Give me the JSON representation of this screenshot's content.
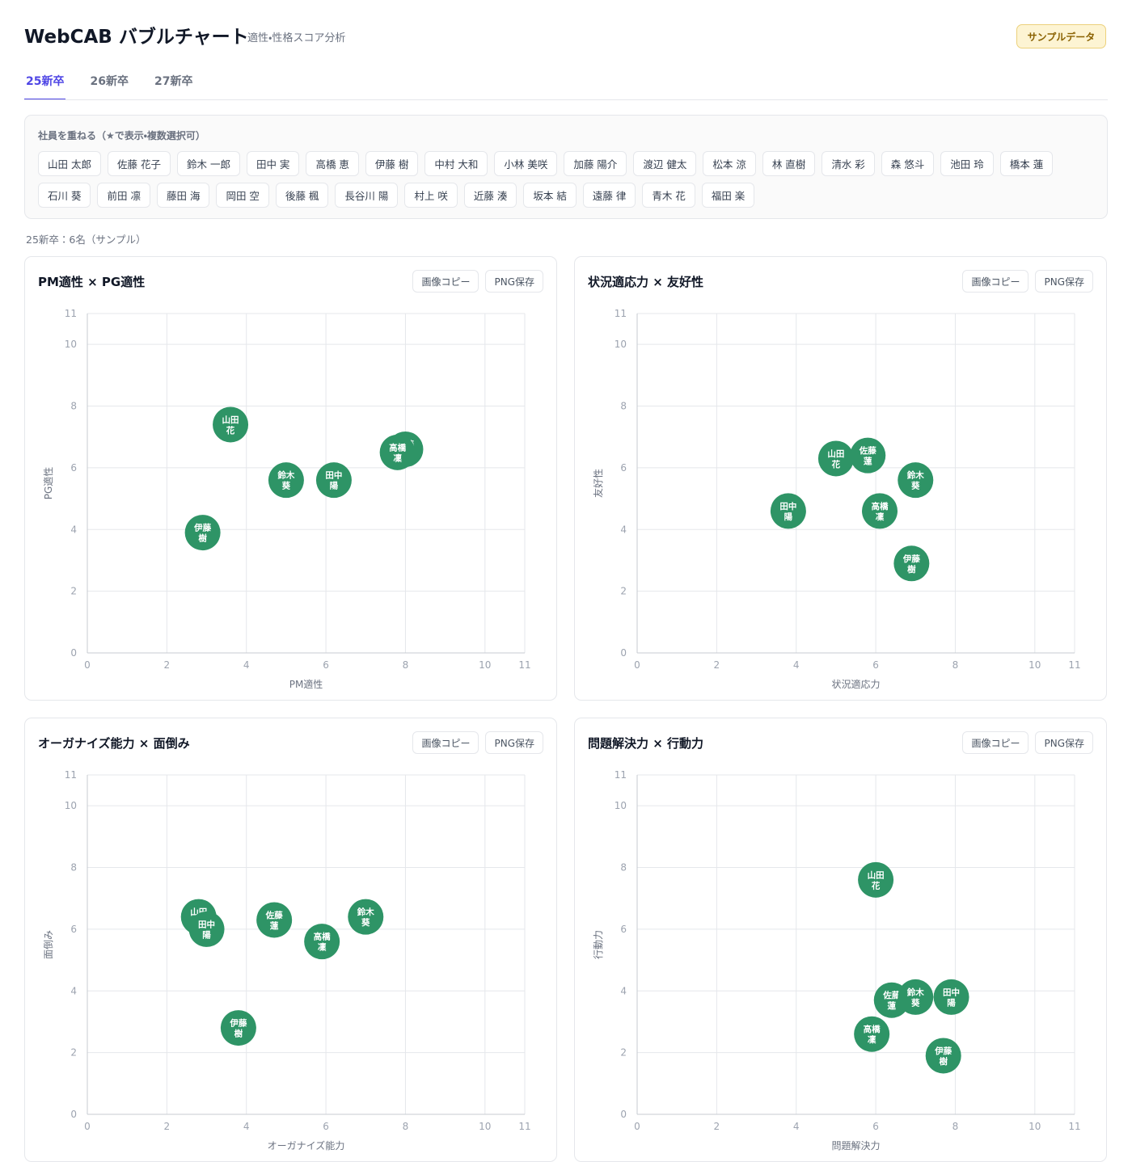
{
  "header": {
    "title": "WebCAB バブルチャート",
    "subtitle": "適性・性格スコア分析",
    "badge": "サンプルデータ"
  },
  "tabs": [
    "25新卒",
    "26新卒",
    "27新卒"
  ],
  "active_tab": 0,
  "overlay": {
    "label": "社員を重ねる（★で表示・複数選択可）",
    "employees": [
      "山田 太郎",
      "佐藤 花子",
      "鈴木 一郎",
      "田中 実",
      "高橋 恵",
      "伊藤 樹",
      "中村 大和",
      "小林 美咲",
      "加藤 陽介",
      "渡辺 健太",
      "松本 涼",
      "林 直樹",
      "清水 彩",
      "森 悠斗",
      "池田 玲",
      "橋本 蓮",
      "石川 葵",
      "前田 凛",
      "藤田 海",
      "岡田 空",
      "後藤 楓",
      "長谷川 陽",
      "村上 咲",
      "近藤 湊",
      "坂本 結",
      "遠藤 律",
      "青木 花",
      "福田 楽"
    ]
  },
  "status": "25新卒：6名（サンプル）",
  "chart_actions": [
    "画像コピー",
    "PNG保存"
  ],
  "chart_data": [
    {
      "type": "scatter",
      "title": "PM適性 × PG適性",
      "xlabel": "PM適性",
      "ylabel": "PG適性",
      "xlim": [
        0,
        11
      ],
      "ylim": [
        0,
        11
      ],
      "xticks": [
        0,
        2,
        4,
        6,
        8,
        10,
        11
      ],
      "yticks": [
        0,
        2,
        4,
        6,
        8,
        10,
        11
      ],
      "grid": true,
      "series": [
        {
          "color": "#2e9466",
          "labels": [
            "山田 花",
            "佐藤 蓮",
            "鈴木 葵",
            "田中 陽",
            "高橋 凜",
            "伊藤 樹"
          ],
          "x": [
            3.6,
            8.0,
            5.0,
            6.2,
            7.8,
            2.9
          ],
          "y": [
            7.4,
            6.6,
            5.6,
            5.6,
            6.5,
            3.9
          ]
        }
      ]
    },
    {
      "type": "scatter",
      "title": "状況適応力 × 友好性",
      "xlabel": "状況適応力",
      "ylabel": "友好性",
      "xlim": [
        0,
        11
      ],
      "ylim": [
        0,
        11
      ],
      "xticks": [
        0,
        2,
        4,
        6,
        8,
        10,
        11
      ],
      "yticks": [
        0,
        2,
        4,
        6,
        8,
        10,
        11
      ],
      "grid": true,
      "series": [
        {
          "color": "#2e9466",
          "labels": [
            "山田 花",
            "佐藤 蓮",
            "鈴木 葵",
            "田中 陽",
            "高橋 凜",
            "伊藤 樹"
          ],
          "x": [
            5.0,
            5.8,
            7.0,
            3.8,
            6.1,
            6.9
          ],
          "y": [
            6.3,
            6.4,
            5.6,
            4.6,
            4.6,
            2.9
          ]
        }
      ]
    },
    {
      "type": "scatter",
      "title": "オーガナイズ能力 × 面倒み",
      "xlabel": "オーガナイズ能力",
      "ylabel": "面倒み",
      "xlim": [
        0,
        11
      ],
      "ylim": [
        0,
        11
      ],
      "xticks": [
        0,
        2,
        4,
        6,
        8,
        10,
        11
      ],
      "yticks": [
        0,
        2,
        4,
        6,
        8,
        10,
        11
      ],
      "grid": true,
      "series": [
        {
          "color": "#2e9466",
          "labels": [
            "山田 花",
            "佐藤 蓮",
            "鈴木 葵",
            "田中 陽",
            "高橋 凜",
            "伊藤 樹"
          ],
          "x": [
            2.8,
            4.7,
            7.0,
            3.0,
            5.9,
            3.8
          ],
          "y": [
            6.4,
            6.3,
            6.4,
            6.0,
            5.6,
            2.8
          ]
        }
      ]
    },
    {
      "type": "scatter",
      "title": "問題解決力 × 行動力",
      "xlabel": "問題解決力",
      "ylabel": "行動力",
      "xlim": [
        0,
        11
      ],
      "ylim": [
        0,
        11
      ],
      "xticks": [
        0,
        2,
        4,
        6,
        8,
        10,
        11
      ],
      "yticks": [
        0,
        2,
        4,
        6,
        8,
        10,
        11
      ],
      "grid": true,
      "series": [
        {
          "color": "#2e9466",
          "labels": [
            "山田 花",
            "佐藤 蓮",
            "鈴木 葵",
            "田中 陽",
            "高橋 凜",
            "伊藤 樹"
          ],
          "x": [
            6.0,
            6.4,
            7.0,
            7.9,
            5.9,
            7.7
          ],
          "y": [
            7.6,
            3.7,
            3.8,
            3.8,
            2.6,
            1.9
          ]
        }
      ]
    }
  ]
}
